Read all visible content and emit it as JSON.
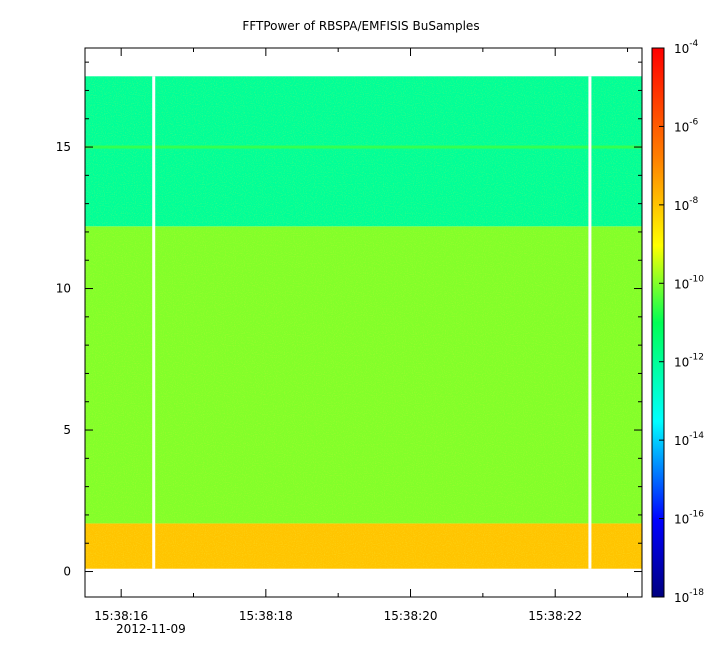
{
  "chart_data": {
    "type": "heatmap",
    "title": "FFTPower of RBSPA/EMFISIS  BuSamples",
    "xlabel": "",
    "ylabel": "",
    "x_ticks": [
      "15:38:16",
      "15:38:18",
      "15:38:20",
      "15:38:22"
    ],
    "x_date_label": "2012-11-09",
    "xlim": [
      "15:38:15.5",
      "15:38:23.2"
    ],
    "y_ticks": [
      0,
      5,
      10,
      15
    ],
    "ylim": [
      -0.9,
      18.5
    ],
    "colorbar": {
      "scale": "log",
      "range": [
        1e-18,
        0.0001
      ],
      "ticks": [
        {
          "base": "10",
          "exp": "-4",
          "value": 0.0001
        },
        {
          "base": "10",
          "exp": "-6",
          "value": 1e-06
        },
        {
          "base": "10",
          "exp": "-8",
          "value": 1e-08
        },
        {
          "base": "10",
          "exp": "-10",
          "value": 1e-10
        },
        {
          "base": "10",
          "exp": "-12",
          "value": 1e-12
        },
        {
          "base": "10",
          "exp": "-14",
          "value": 1e-14
        },
        {
          "base": "10",
          "exp": "-16",
          "value": 1e-16
        },
        {
          "base": "10",
          "exp": "-18",
          "value": 1e-18
        }
      ]
    },
    "data_extent": {
      "y_min": 0.1,
      "y_max": 17.5,
      "x_start": "15:38:15.5",
      "x_end": "15:38:23.2"
    },
    "bands": [
      {
        "y_from": 0.1,
        "y_to": 1.7,
        "power": 1e-08
      },
      {
        "y_from": 1.7,
        "y_to": 12.2,
        "power": 1e-10
      },
      {
        "y_from": 12.2,
        "y_to": 17.5,
        "power": 1e-12
      }
    ],
    "line_features": [
      {
        "y": 15.0,
        "power": 3e-11
      }
    ],
    "data_gaps": [
      "15:38:16.45",
      "15:38:22.48"
    ],
    "colors": {
      "colormap": [
        "#00007f",
        "#0000ff",
        "#00ffff",
        "#00ff55",
        "#ffff00",
        "#ff7f00",
        "#ff0000"
      ]
    }
  }
}
